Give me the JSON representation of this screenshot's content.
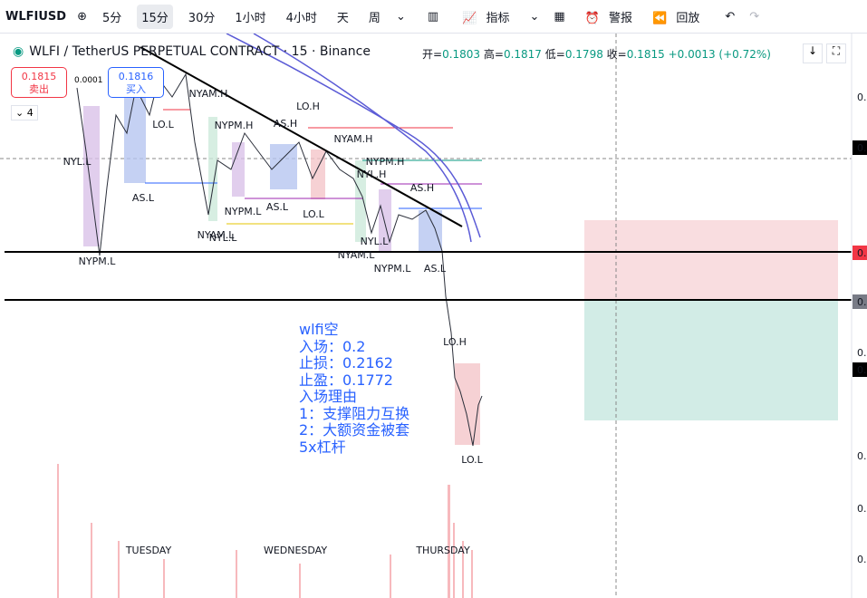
{
  "toolbar": {
    "symbol": "WLFIUSD",
    "intervals": [
      "5分",
      "15分",
      "30分",
      "1小时",
      "4小时",
      "天",
      "周"
    ],
    "indicators": "指标",
    "alerts": "警报",
    "replay": "回放"
  },
  "header": {
    "title": "WLFI / TetherUS PERPETUAL CONTRACT · 15 · Binance",
    "ohlc": [
      {
        "label": "开=",
        "value": "0.1803"
      },
      {
        "label": "高=",
        "value": "0.1817"
      },
      {
        "label": "低=",
        "value": "0.1798"
      },
      {
        "label": "收=",
        "value": "0.1815"
      }
    ],
    "change": "+0.0013 (+0.72%)"
  },
  "trade": {
    "sell_price": "0.1815",
    "sell_label": "卖出",
    "spread": "0.0001",
    "buy_price": "0.1816",
    "buy_label": "买入",
    "quantity": "4"
  },
  "session_labels": [
    "NYL.L",
    "AS.L",
    "LO.L",
    "NYAM.H",
    "NYPM.H",
    "AS.H",
    "LO.H",
    "NYAM.H",
    "NYPM.H",
    "NYL.H",
    "AS.H",
    "NYPM.L",
    "AS.L",
    "LO.L",
    "NYAM.L",
    "NYL.L",
    "NYL.L",
    "NYAM.L",
    "NYPM.L",
    "NYPM.L",
    "AS.L",
    "LO.H",
    "LO.L"
  ],
  "day_labels": [
    "TUESDAY",
    "WEDNESDAY",
    "THURSDAY"
  ],
  "note": {
    "lines": [
      "wlfi空",
      "入场：0.2",
      "止损：0.2162",
      "止盈：0.1772",
      "入场理由",
      "1：支撑阻力互换",
      "2：大额资金被套",
      "5x杠杆"
    ]
  },
  "price_axis": [
    "0.",
    "0.",
    "0.",
    "0.",
    "0.",
    "0.",
    "0.",
    "0.",
    "0."
  ]
}
